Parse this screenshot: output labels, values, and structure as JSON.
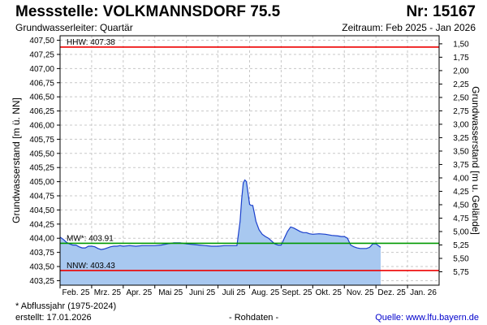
{
  "header": {
    "title": "Messstelle: VOLKMANNSDORF 75.5",
    "number": "Nr: 15167",
    "aquifer": "Grundwasserleiter: Quartär",
    "period": "Zeitraum: Feb 2025 - Jan 2026"
  },
  "footer": {
    "footnote": "* Abflussjahr (1975-2024)",
    "created": "erstellt:  17.01.2026",
    "raw": "- Rohdaten -",
    "source": "Quelle: www.lfu.bayern.de"
  },
  "colors": {
    "fill": "#a8c8f0",
    "line": "#1a3fcc",
    "hhw": "#ee0000",
    "nnw": "#ee0000",
    "mw": "#009900",
    "grid": "#c8c8c8"
  },
  "chart_data": {
    "type": "area",
    "ylabel": "Grundwasserstand [m ü. NN]",
    "ylabel_right": "Grundwasserstand [m u. Gelände]",
    "ylim": [
      403.17,
      407.58
    ],
    "ylim_right": [
      6.0,
      1.35
    ],
    "grid": true,
    "yticks": [
      "403,25",
      "403,50",
      "403,75",
      "404,00",
      "404,25",
      "404,50",
      "404,75",
      "405,00",
      "405,25",
      "405,50",
      "405,75",
      "406,00",
      "406,25",
      "406,50",
      "406,75",
      "407,00",
      "407,25",
      "407,50"
    ],
    "yticks_right": [
      "1,50",
      "1,75",
      "2,00",
      "2,25",
      "2,50",
      "2,75",
      "3,00",
      "3,25",
      "3,50",
      "3,75",
      "4,00",
      "4,25",
      "4,50",
      "4,75",
      "5,00",
      "5,25",
      "5,50",
      "5,75"
    ],
    "months": [
      "Feb. 25",
      "Mrz. 25",
      "Apr. 25",
      "Mai 25",
      "Juni 25",
      "Juli 25",
      "Aug. 25",
      "Sept. 25",
      "Okt. 25",
      "Nov. 25",
      "Dez. 25",
      "Jan. 26"
    ],
    "x_unit": "month index (0 = 1 Feb 2025)",
    "reference_lines": [
      {
        "label": "HHW: 407.38",
        "value": 407.38
      },
      {
        "label": "MW*: 403.91",
        "value": 403.91
      },
      {
        "label": "NNW: 403.43",
        "value": 403.43
      }
    ],
    "series": [
      {
        "x": [
          0.0,
          0.1,
          0.2,
          0.3,
          0.4,
          0.5,
          0.6,
          0.7,
          0.8,
          0.9,
          1.0,
          1.1,
          1.2,
          1.3,
          1.4,
          1.5,
          1.6,
          1.7,
          1.8,
          1.9,
          2.0,
          2.2,
          2.4,
          2.6,
          2.8,
          3.0,
          3.2,
          3.4,
          3.6,
          3.8,
          4.0,
          4.2,
          4.4,
          4.6,
          4.8,
          5.0,
          5.2,
          5.4,
          5.6,
          5.7,
          5.75,
          5.8,
          5.85,
          5.9,
          5.95,
          6.0,
          6.05,
          6.1,
          6.15,
          6.2,
          6.3,
          6.4,
          6.5,
          6.6,
          6.7,
          6.8,
          6.9,
          7.0,
          7.1,
          7.2,
          7.3,
          7.4,
          7.5,
          7.6,
          7.7,
          7.8,
          7.9,
          8.0,
          8.2,
          8.4,
          8.6,
          8.8,
          8.9,
          9.0,
          9.1,
          9.2,
          9.3,
          9.4,
          9.5,
          9.6,
          9.7,
          9.8,
          9.9,
          10.0,
          10.1,
          10.15
        ],
        "y": [
          404.02,
          403.98,
          403.93,
          403.9,
          403.88,
          403.88,
          403.85,
          403.83,
          403.83,
          403.86,
          403.86,
          403.85,
          403.82,
          403.8,
          403.81,
          403.83,
          403.85,
          403.86,
          403.86,
          403.87,
          403.86,
          403.87,
          403.86,
          403.87,
          403.87,
          403.87,
          403.88,
          403.9,
          403.92,
          403.92,
          403.9,
          403.89,
          403.88,
          403.87,
          403.86,
          403.86,
          403.87,
          403.87,
          403.87,
          404.3,
          404.7,
          404.98,
          405.03,
          405.0,
          404.8,
          404.6,
          404.58,
          404.58,
          404.45,
          404.3,
          404.15,
          404.07,
          404.03,
          404.0,
          403.95,
          403.9,
          403.88,
          403.88,
          404.0,
          404.12,
          404.2,
          404.18,
          404.15,
          404.12,
          404.1,
          404.1,
          404.08,
          404.07,
          404.08,
          404.07,
          404.05,
          404.04,
          404.03,
          404.03,
          404.0,
          403.88,
          403.85,
          403.83,
          403.82,
          403.82,
          403.82,
          403.84,
          403.9,
          403.9,
          403.86,
          403.84
        ]
      }
    ]
  }
}
